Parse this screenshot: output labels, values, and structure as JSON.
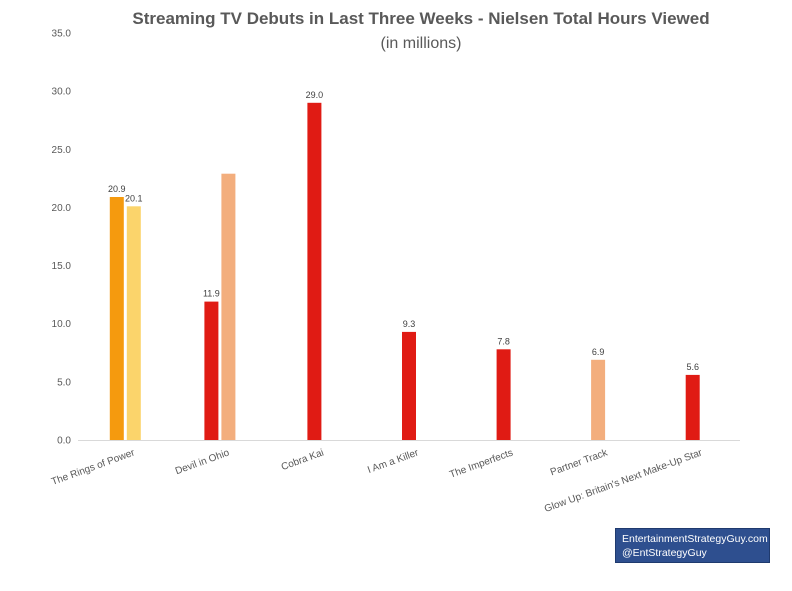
{
  "chart_data": {
    "type": "bar",
    "title": "Streaming TV Debuts in Last Three Weeks - Nielsen Total Hours Viewed",
    "subtitle": "(in millions)",
    "ylim": [
      0,
      35
    ],
    "yticks": [
      "0.0",
      "5.0",
      "10.0",
      "15.0",
      "20.0",
      "25.0",
      "30.0",
      "35.0"
    ],
    "grid": false,
    "categories": [
      "The Rings of Power",
      "Devil in Ohio",
      "Cobra Kai",
      "I Am a Killer",
      "The Imperfects",
      "Partner Track",
      "Glow Up: Britain's Next Make-Up Star"
    ],
    "bars": [
      {
        "category": 0,
        "slot": 0,
        "value": 20.9,
        "label": "20.9",
        "color": "#f59a0e"
      },
      {
        "category": 0,
        "slot": 1,
        "value": 20.1,
        "label": "20.1",
        "color": "#fbd46b"
      },
      {
        "category": 1,
        "slot": 0,
        "value": 11.9,
        "label": "11.9",
        "color": "#e01b14"
      },
      {
        "category": 1,
        "slot": 1,
        "value": 22.9,
        "label": "",
        "color": "#f3ae7d"
      },
      {
        "category": 2,
        "slot": 0.5,
        "value": 29.0,
        "label": "29.0",
        "color": "#e01b14"
      },
      {
        "category": 3,
        "slot": 0.5,
        "value": 9.3,
        "label": "9.3",
        "color": "#e01b14"
      },
      {
        "category": 4,
        "slot": 0.5,
        "value": 7.8,
        "label": "7.8",
        "color": "#e01b14"
      },
      {
        "category": 5,
        "slot": 0.5,
        "value": 6.9,
        "label": "6.9",
        "color": "#f3ae7d"
      },
      {
        "category": 6,
        "slot": 0.5,
        "value": 5.6,
        "label": "5.6",
        "color": "#e01b14"
      }
    ]
  },
  "credit": {
    "line1": "EntertainmentStrategyGuy.com",
    "line2": "@EntStrategyGuy"
  }
}
